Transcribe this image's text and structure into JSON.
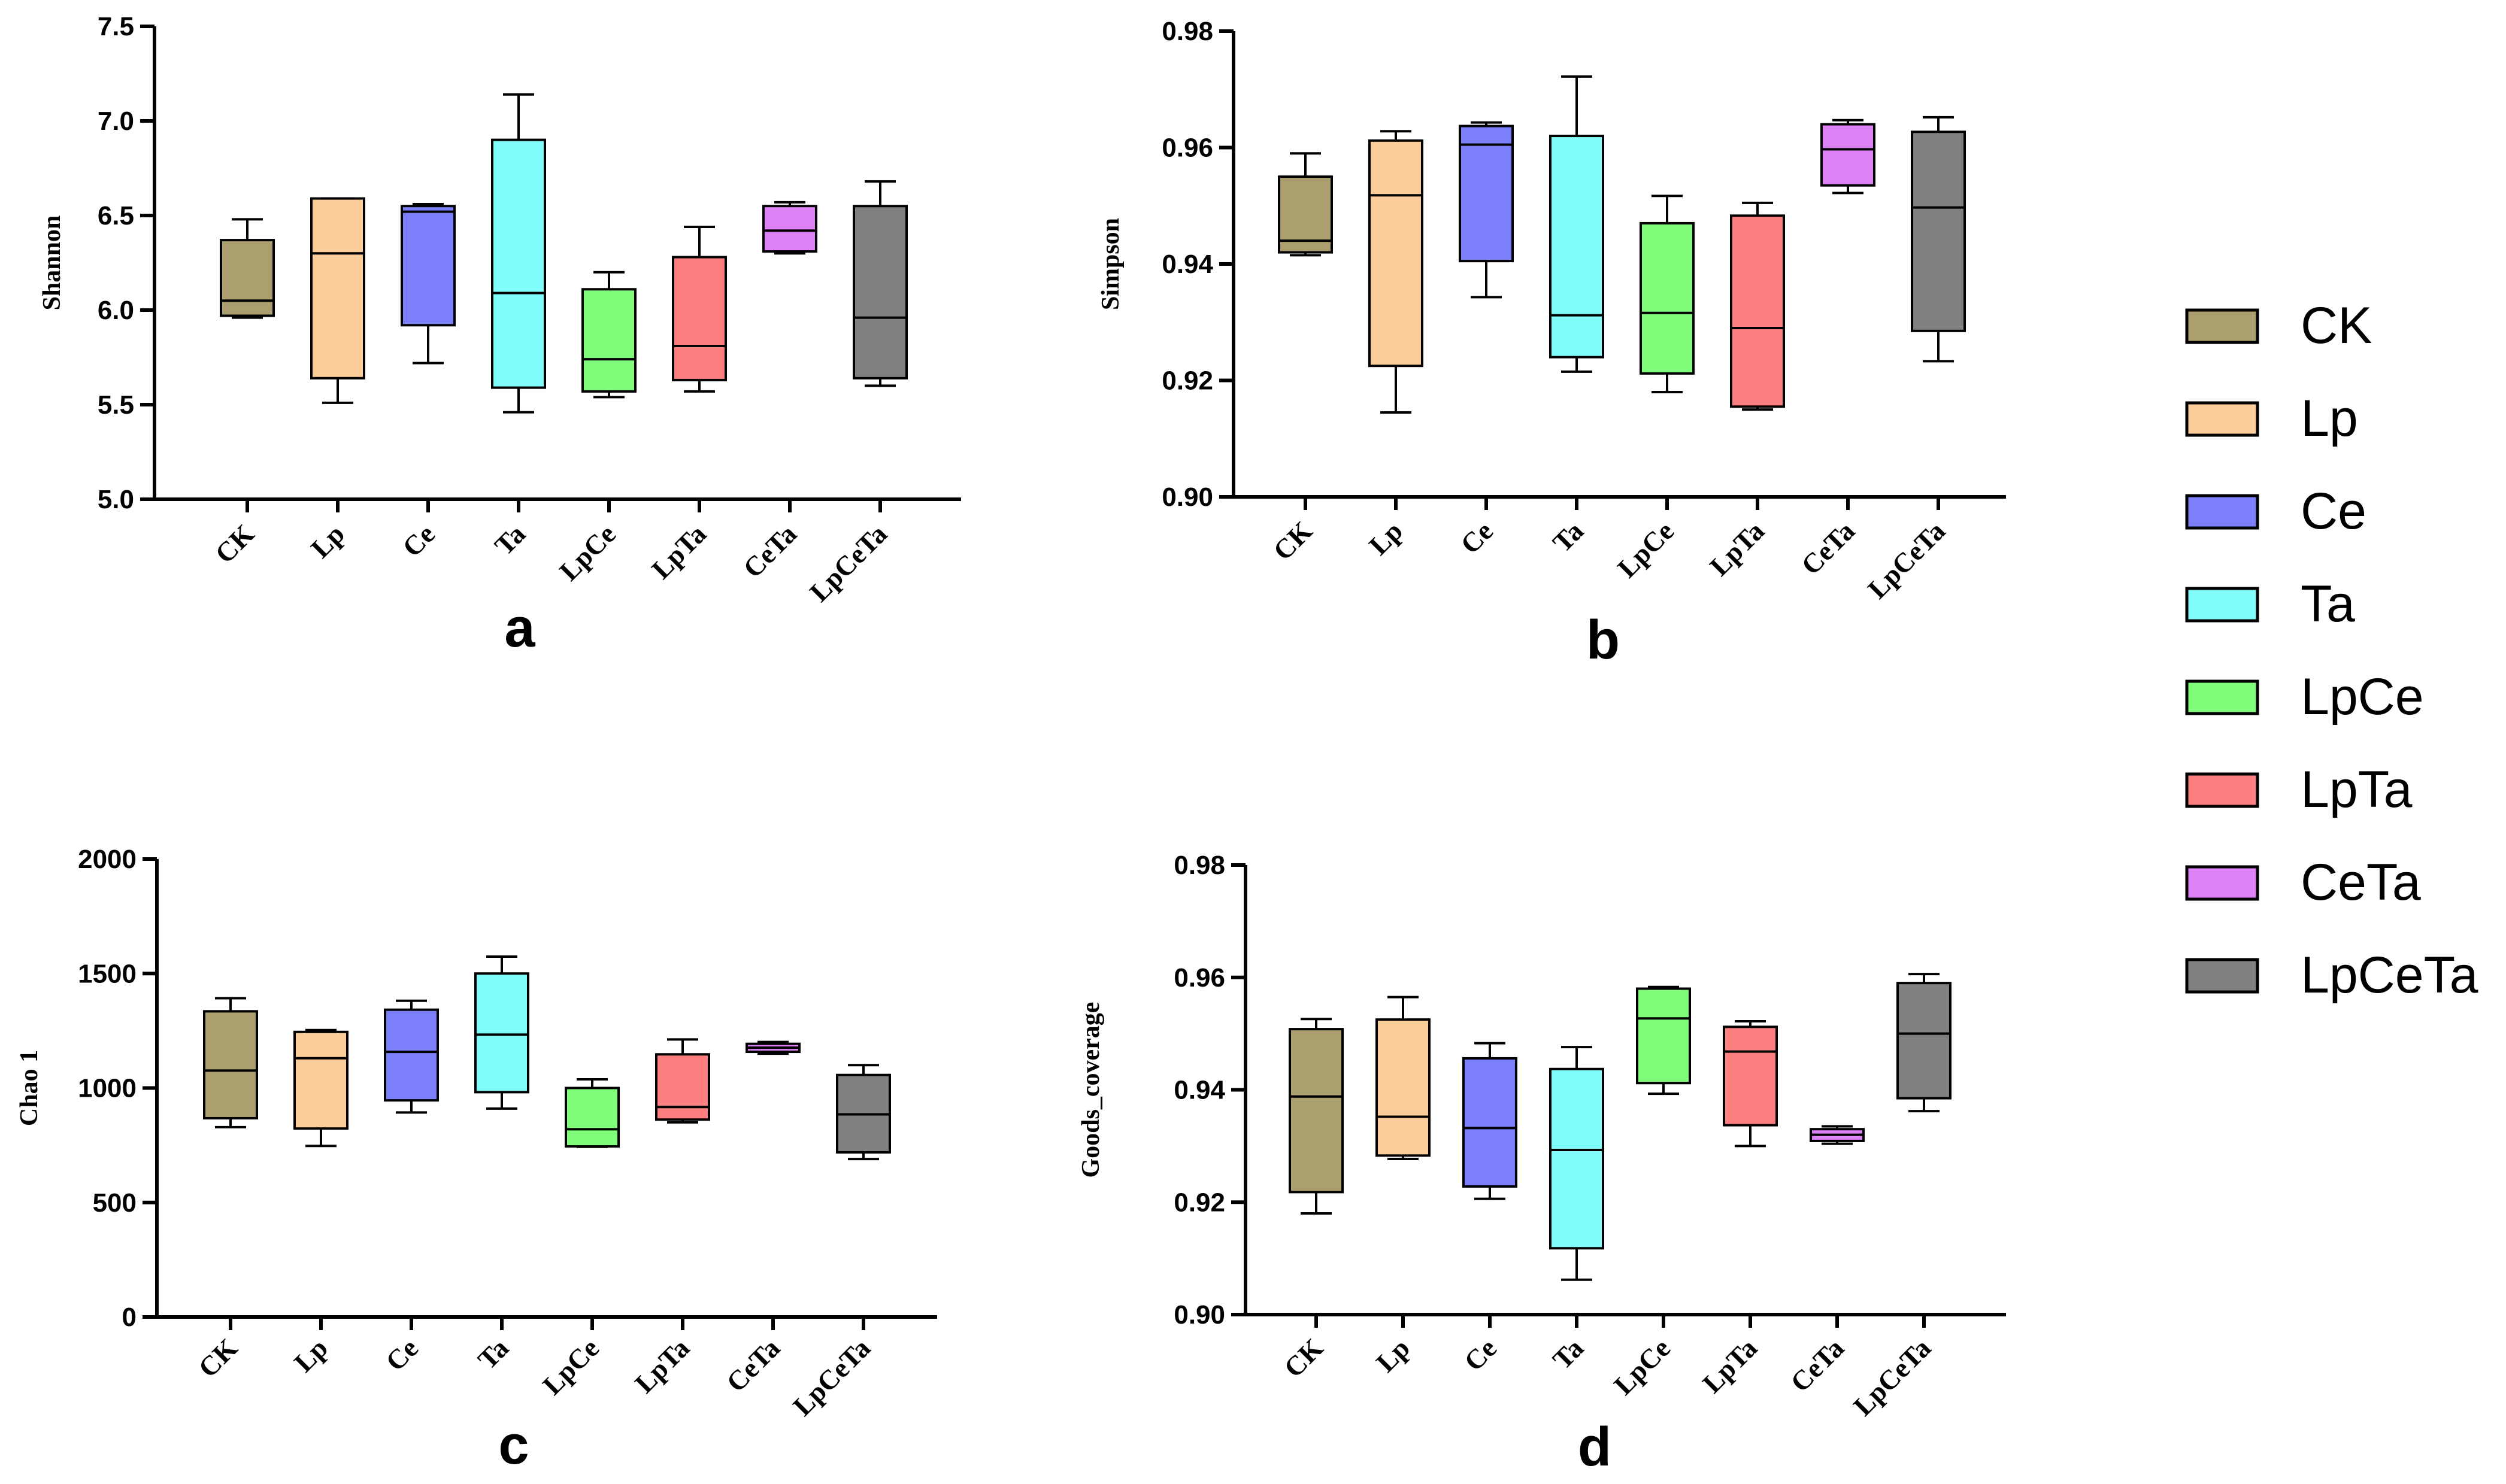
{
  "categories": [
    "CK",
    "Lp",
    "Ce",
    "Ta",
    "LpCe",
    "LpTa",
    "CeTa",
    "LpCeTa"
  ],
  "colors": {
    "CK": "#ab9f6f",
    "Lp": "#fbcd9b",
    "Ce": "#7b7ff9",
    "Ta": "#80fdfb",
    "LpCe": "#7ffd7b",
    "LpTa": "#fd7f7f",
    "CeTa": "#dc82f4",
    "LpCeTa": "#808080"
  },
  "legend": {
    "items": [
      "CK",
      "Lp",
      "Ce",
      "Ta",
      "LpCe",
      "LpTa",
      "CeTa",
      "LpCeTa"
    ]
  },
  "chart_data": [
    {
      "panel": "a",
      "type": "box",
      "ylabel": "Shannon",
      "ylim": [
        5.0,
        7.5
      ],
      "yticks": [
        "5.0",
        "5.5",
        "6.0",
        "6.5",
        "7.0",
        "7.5"
      ],
      "tick_values": [
        5.0,
        5.5,
        6.0,
        6.5,
        7.0,
        7.5
      ],
      "series": [
        {
          "name": "CK",
          "min": 5.96,
          "q1": 5.97,
          "median": 6.05,
          "q3": 6.37,
          "max": 6.48
        },
        {
          "name": "Lp",
          "min": 5.51,
          "q1": 5.64,
          "median": 6.3,
          "q3": 6.59,
          "max": 6.59
        },
        {
          "name": "Ce",
          "min": 5.72,
          "q1": 5.92,
          "median": 6.52,
          "q3": 6.55,
          "max": 6.56
        },
        {
          "name": "Ta",
          "min": 5.46,
          "q1": 5.59,
          "median": 6.09,
          "q3": 6.9,
          "max": 7.14
        },
        {
          "name": "LpCe",
          "min": 5.54,
          "q1": 5.57,
          "median": 5.74,
          "q3": 6.11,
          "max": 6.2
        },
        {
          "name": "LpTa",
          "min": 5.57,
          "q1": 5.63,
          "median": 5.81,
          "q3": 6.28,
          "max": 6.44
        },
        {
          "name": "CeTa",
          "min": 6.3,
          "q1": 6.31,
          "median": 6.42,
          "q3": 6.55,
          "max": 6.57
        },
        {
          "name": "LpCeTa",
          "min": 5.6,
          "q1": 5.64,
          "median": 5.96,
          "q3": 6.55,
          "max": 6.68
        }
      ]
    },
    {
      "panel": "b",
      "type": "box",
      "ylabel": "Simpson",
      "ylim": [
        0.9,
        0.98
      ],
      "yticks": [
        "0.90",
        "0.92",
        "0.94",
        "0.96",
        "0.98"
      ],
      "tick_values": [
        0.9,
        0.92,
        0.94,
        0.96,
        0.98
      ],
      "series": [
        {
          "name": "CK",
          "min": 0.9415,
          "q1": 0.942,
          "median": 0.944,
          "q3": 0.955,
          "max": 0.959
        },
        {
          "name": "Lp",
          "min": 0.9145,
          "q1": 0.9225,
          "median": 0.9518,
          "q3": 0.9612,
          "max": 0.9628
        },
        {
          "name": "Ce",
          "min": 0.9343,
          "q1": 0.9405,
          "median": 0.9605,
          "q3": 0.9637,
          "max": 0.9643
        },
        {
          "name": "Ta",
          "min": 0.9215,
          "q1": 0.924,
          "median": 0.9312,
          "q3": 0.962,
          "max": 0.9722
        },
        {
          "name": "LpCe",
          "min": 0.918,
          "q1": 0.9212,
          "median": 0.9316,
          "q3": 0.947,
          "max": 0.9517
        },
        {
          "name": "LpTa",
          "min": 0.915,
          "q1": 0.9155,
          "median": 0.929,
          "q3": 0.9483,
          "max": 0.9505
        },
        {
          "name": "CeTa",
          "min": 0.9522,
          "q1": 0.9535,
          "median": 0.9597,
          "q3": 0.964,
          "max": 0.9647
        },
        {
          "name": "LpCeTa",
          "min": 0.9233,
          "q1": 0.9285,
          "median": 0.9497,
          "q3": 0.9627,
          "max": 0.9652
        }
      ]
    },
    {
      "panel": "c",
      "type": "box",
      "ylabel": "Chao 1",
      "ylim": [
        0,
        2000
      ],
      "yticks": [
        "0",
        "500",
        "1000",
        "1500",
        "2000"
      ],
      "tick_values": [
        0,
        500,
        1000,
        1500,
        2000
      ],
      "series": [
        {
          "name": "CK",
          "min": 829,
          "q1": 868,
          "median": 1076,
          "q3": 1335,
          "max": 1392
        },
        {
          "name": "Lp",
          "min": 747,
          "q1": 823,
          "median": 1130,
          "q3": 1245,
          "max": 1253
        },
        {
          "name": "Ce",
          "min": 893,
          "q1": 946,
          "median": 1158,
          "q3": 1342,
          "max": 1381
        },
        {
          "name": "Ta",
          "min": 910,
          "q1": 982,
          "median": 1233,
          "q3": 1500,
          "max": 1574
        },
        {
          "name": "LpCe",
          "min": 743,
          "q1": 745,
          "median": 820,
          "q3": 1000,
          "max": 1038
        },
        {
          "name": "LpTa",
          "min": 850,
          "q1": 862,
          "median": 917,
          "q3": 1147,
          "max": 1212
        },
        {
          "name": "CeTa",
          "min": 1150,
          "q1": 1158,
          "median": 1176,
          "q3": 1193,
          "max": 1201
        },
        {
          "name": "LpCeTa",
          "min": 690,
          "q1": 719,
          "median": 885,
          "q3": 1057,
          "max": 1100
        }
      ]
    },
    {
      "panel": "d",
      "type": "box",
      "ylabel": "Goods_coverage",
      "ylim": [
        0.9,
        0.98
      ],
      "yticks": [
        "0.90",
        "0.92",
        "0.94",
        "0.96",
        "0.98"
      ],
      "tick_values": [
        0.9,
        0.92,
        0.94,
        0.96,
        0.98
      ],
      "series": [
        {
          "name": "CK",
          "min": 0.918,
          "q1": 0.9218,
          "median": 0.9388,
          "q3": 0.9508,
          "max": 0.9526
        },
        {
          "name": "Lp",
          "min": 0.9277,
          "q1": 0.9283,
          "median": 0.9352,
          "q3": 0.9525,
          "max": 0.9565
        },
        {
          "name": "Ce",
          "min": 0.9206,
          "q1": 0.9228,
          "median": 0.9332,
          "q3": 0.9456,
          "max": 0.9483
        },
        {
          "name": "Ta",
          "min": 0.9062,
          "q1": 0.9118,
          "median": 0.9293,
          "q3": 0.9437,
          "max": 0.9476
        },
        {
          "name": "LpCe",
          "min": 0.9393,
          "q1": 0.9412,
          "median": 0.9527,
          "q3": 0.958,
          "max": 0.9583
        },
        {
          "name": "LpTa",
          "min": 0.93,
          "q1": 0.9337,
          "median": 0.9468,
          "q3": 0.9512,
          "max": 0.9522
        },
        {
          "name": "CeTa",
          "min": 0.9304,
          "q1": 0.9309,
          "median": 0.932,
          "q3": 0.933,
          "max": 0.9335
        },
        {
          "name": "LpCeTa",
          "min": 0.9362,
          "q1": 0.9385,
          "median": 0.95,
          "q3": 0.959,
          "max": 0.9606
        }
      ]
    }
  ]
}
